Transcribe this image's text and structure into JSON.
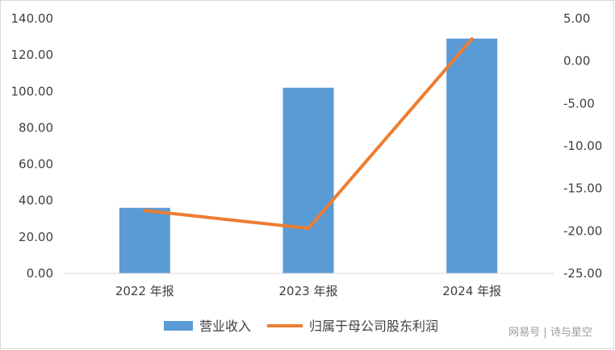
{
  "chart_data": {
    "type": "bar+line",
    "categories": [
      "2022 年报",
      "2023 年报",
      "2024 年报"
    ],
    "series": [
      {
        "name": "营业收入",
        "type": "bar",
        "axis": "left",
        "values": [
          36.0,
          102.0,
          129.0
        ],
        "color": "#5b9bd5"
      },
      {
        "name": "归属于母公司股东利润",
        "type": "line",
        "axis": "right",
        "values": [
          -17.6,
          -19.7,
          2.6
        ],
        "color": "#ed7d31"
      }
    ],
    "y_left": {
      "ylim": [
        0,
        140
      ],
      "ticks": [
        "0.00",
        "20.00",
        "40.00",
        "60.00",
        "80.00",
        "100.00",
        "120.00",
        "140.00"
      ]
    },
    "y_right": {
      "ylim": [
        -25,
        5
      ],
      "ticks": [
        "-25.00",
        "-20.00",
        "-15.00",
        "-10.00",
        "-5.00",
        "0.00",
        "5.00"
      ]
    },
    "legend_position": "bottom",
    "grid": false
  },
  "watermark": "网易号 | 诗与星空"
}
